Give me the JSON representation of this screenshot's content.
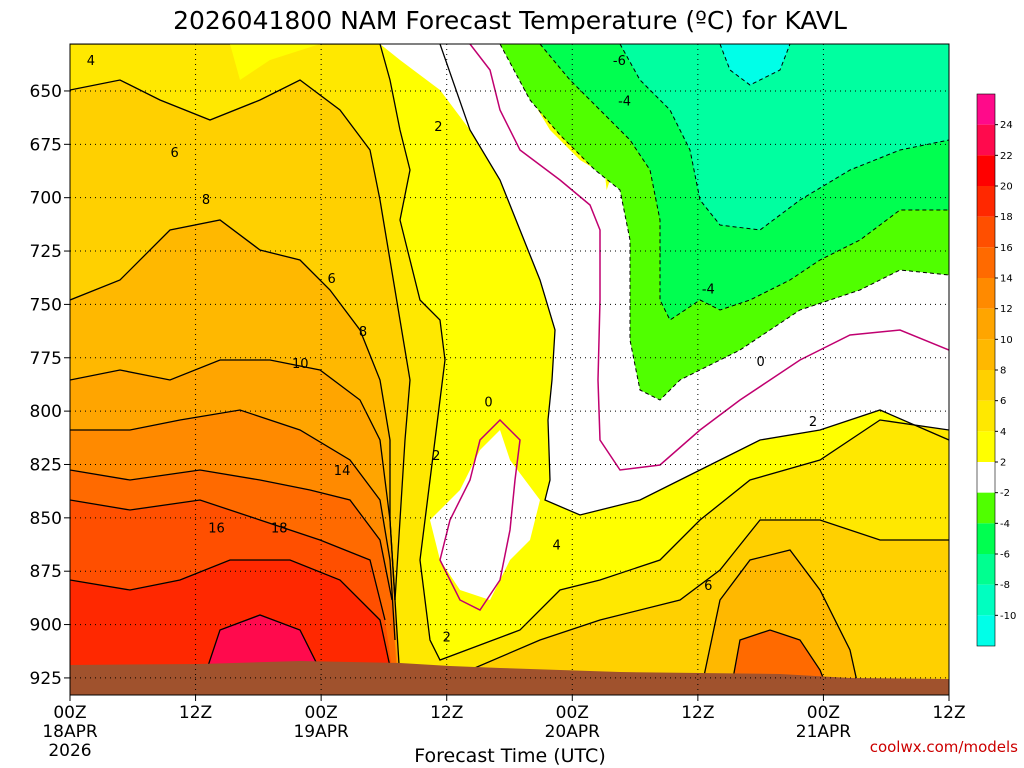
{
  "chart_data": {
    "type": "heatmap",
    "title": "2026041800 NAM Forecast Temperature (ºC) for KAVL",
    "xlabel": "Forecast Time (UTC)",
    "ylabel": "",
    "y_ticks": [
      "650",
      "675",
      "700",
      "725",
      "750",
      "775",
      "800",
      "825",
      "850",
      "875",
      "900",
      "925"
    ],
    "y_values": [
      650,
      675,
      700,
      725,
      750,
      775,
      800,
      825,
      850,
      875,
      900,
      925
    ],
    "ylim": [
      628,
      933
    ],
    "x_hours": [
      0,
      12,
      24,
      36,
      48,
      60,
      72,
      84
    ],
    "x_ticks": [
      {
        "hour": 0,
        "l1": "00Z",
        "l2": "18APR",
        "l3": "2026"
      },
      {
        "hour": 12,
        "l1": "12Z",
        "l2": "",
        "l3": ""
      },
      {
        "hour": 24,
        "l1": "00Z",
        "l2": "19APR",
        "l3": ""
      },
      {
        "hour": 36,
        "l1": "12Z",
        "l2": "",
        "l3": ""
      },
      {
        "hour": 48,
        "l1": "00Z",
        "l2": "20APR",
        "l3": ""
      },
      {
        "hour": 60,
        "l1": "12Z",
        "l2": "",
        "l3": ""
      },
      {
        "hour": 72,
        "l1": "00Z",
        "l2": "21APR",
        "l3": ""
      },
      {
        "hour": 84,
        "l1": "12Z",
        "l2": "",
        "l3": ""
      }
    ],
    "xlim": [
      0,
      84
    ],
    "colorbar": {
      "levels": [
        24,
        22,
        20,
        18,
        16,
        14,
        12,
        10,
        8,
        6,
        4,
        2,
        -2,
        -4,
        -6,
        -8,
        -10
      ],
      "colors": [
        "#ff0a8a",
        "#ff0a4d",
        "#ff0000",
        "#ff2800",
        "#ff4f00",
        "#ff6a00",
        "#ff8a00",
        "#ffa500",
        "#ffb800",
        "#ffd000",
        "#ffe800",
        "#ffff00",
        "#ffffff",
        "#50ff00",
        "#00ff50",
        "#00ff90",
        "#00ffc0",
        "#00ffe8"
      ]
    },
    "contour_labels": [
      {
        "text": "4",
        "hour": 2.0,
        "p": 636
      },
      {
        "text": "6",
        "hour": 10.0,
        "p": 679
      },
      {
        "text": "8",
        "hour": 13.0,
        "p": 701
      },
      {
        "text": "6",
        "hour": 25.0,
        "p": 738
      },
      {
        "text": "8",
        "hour": 28.0,
        "p": 763
      },
      {
        "text": "10",
        "hour": 22.0,
        "p": 778
      },
      {
        "text": "14",
        "hour": 26.0,
        "p": 828
      },
      {
        "text": "16",
        "hour": 14.0,
        "p": 855
      },
      {
        "text": "18",
        "hour": 20.0,
        "p": 855
      },
      {
        "text": "2",
        "hour": 35.2,
        "p": 667
      },
      {
        "text": "2",
        "hour": 35.0,
        "p": 821
      },
      {
        "text": "2",
        "hour": 36.0,
        "p": 906
      },
      {
        "text": "0",
        "hour": 40.0,
        "p": 796
      },
      {
        "text": "4",
        "hour": 46.5,
        "p": 863
      },
      {
        "text": "6",
        "hour": 61.0,
        "p": 882
      },
      {
        "text": "2",
        "hour": 71.0,
        "p": 805
      },
      {
        "text": "0",
        "hour": 66.0,
        "p": 777
      },
      {
        "text": "-4",
        "hour": 61.0,
        "p": 743
      },
      {
        "text": "-4",
        "hour": 53.0,
        "p": 655
      },
      {
        "text": "-6",
        "hour": 52.5,
        "p": 636
      }
    ],
    "watermark": "coolwx.com/models"
  }
}
